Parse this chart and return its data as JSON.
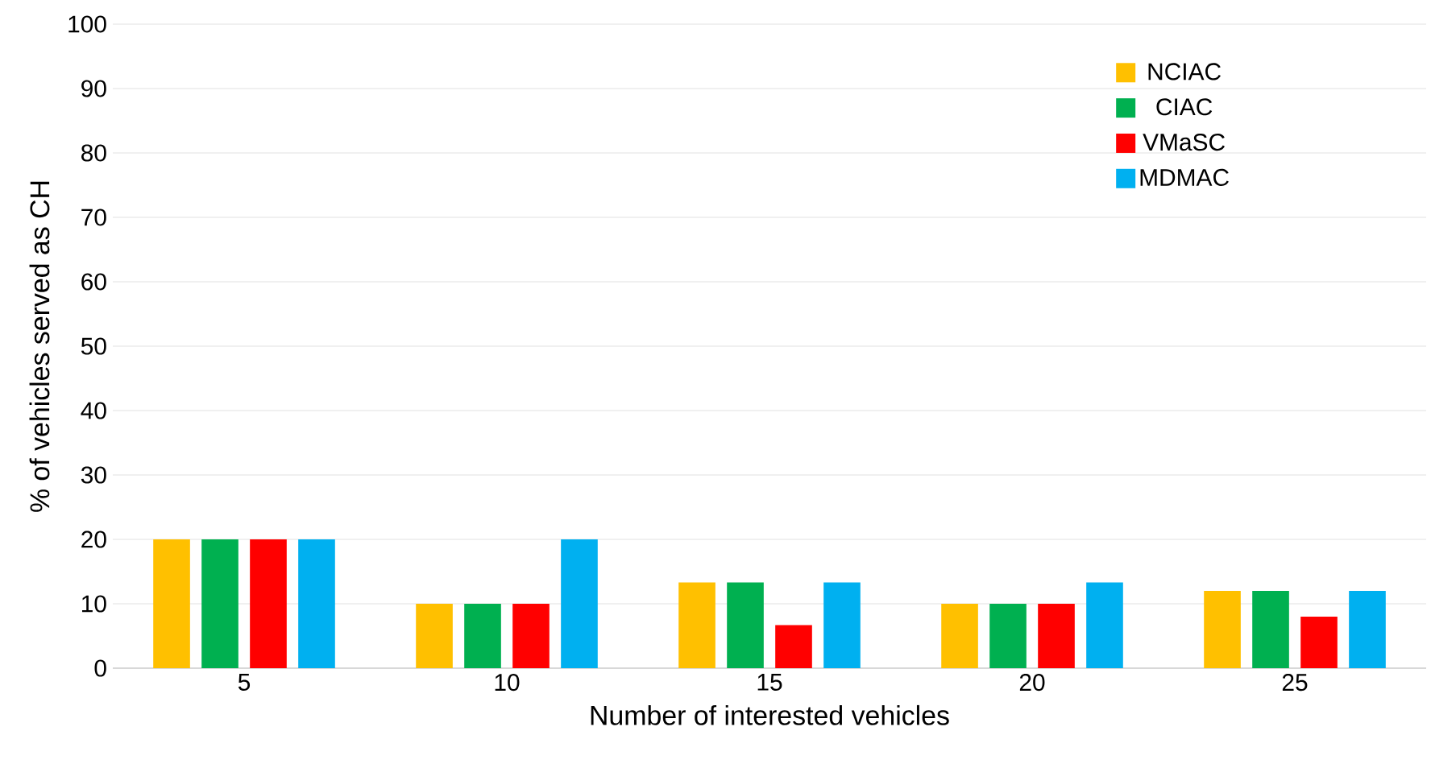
{
  "chart_data": {
    "type": "bar",
    "xlabel": "Number of interested vehicles",
    "ylabel": "%  of vehicles served as CH",
    "categories": [
      "5",
      "10",
      "15",
      "20",
      "25"
    ],
    "series": [
      {
        "name": "NCIAC",
        "color": "#ffc000",
        "values": [
          20,
          10,
          13.3,
          10,
          12
        ]
      },
      {
        "name": "CIAC",
        "color": "#00b050",
        "values": [
          20,
          10,
          13.3,
          10,
          12
        ]
      },
      {
        "name": "VMaSC",
        "color": "#ff0000",
        "values": [
          20,
          10,
          6.7,
          10,
          8
        ]
      },
      {
        "name": "MDMAC",
        "color": "#00b0f0",
        "values": [
          20,
          20,
          13.3,
          13.3,
          12
        ]
      }
    ],
    "ylim": [
      0,
      100
    ],
    "yticks": [
      0,
      10,
      20,
      30,
      40,
      50,
      60,
      70,
      80,
      90,
      100
    ],
    "grid": "y",
    "legend": "top right"
  }
}
